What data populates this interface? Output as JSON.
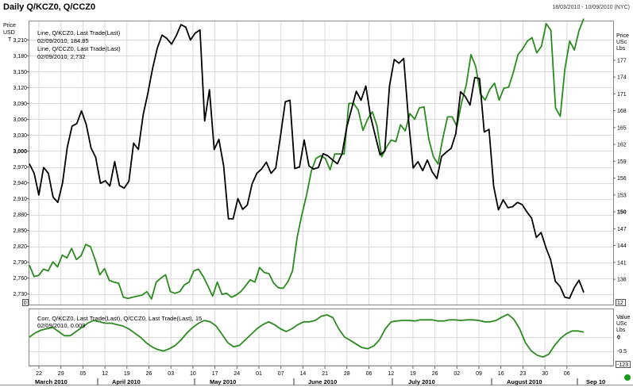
{
  "window": {
    "title": "Daily Q/KCZ0, Q/CCZ0",
    "date_range": "18/03/2010 - 10/09/2010 (NYC)"
  },
  "colors": {
    "kc": "#2a8a1e",
    "cc": "#000000",
    "grid": "#d8d8d8",
    "corr": "#2a8a1e",
    "status_dot": "#1a9a1a"
  },
  "chart_data": [
    {
      "type": "line",
      "title": "Daily Q/KCZ0, Q/CCZ0",
      "left_axis": {
        "label": [
          "Price",
          "USD",
          "T"
        ],
        "ylim": [
          2710,
          3245
        ],
        "ticks": [
          2730,
          2760,
          2790,
          2820,
          2850,
          2880,
          2910,
          2940,
          2970,
          3000,
          3030,
          3060,
          3090,
          3120,
          3150,
          3180,
          3210
        ],
        "tick_labels": [
          "2,730",
          "2,760",
          "2,790",
          "2,820",
          "2,850",
          "2,880",
          "2,910",
          "2,940",
          "2,970",
          "3,000",
          "3,030",
          "3,060",
          "3,090",
          "3,120",
          "3,150",
          "3,180",
          "3,210"
        ],
        "marker": "0"
      },
      "right_axis": {
        "label": [
          "Price",
          "USc",
          "Lbs"
        ],
        "ylim": [
          133.5,
          183.9
        ],
        "ticks": [
          138,
          141,
          144,
          147,
          150,
          153,
          156,
          159,
          162,
          165,
          168,
          171,
          174,
          177
        ],
        "tick_labels": [
          "138",
          "141",
          "144",
          "147",
          "150",
          "153",
          "156",
          "159",
          "162",
          "165",
          "168",
          "171",
          "174",
          "177"
        ],
        "marker": "12"
      },
      "legend": [
        {
          "text": "Line, Q/KCZ0, Last Trade(Last)",
          "value": "02/09/2010, 184.85",
          "color": "#2a8a1e"
        },
        {
          "text": "Line, Q/CCZ0, Last Trade(Last)",
          "value": "02/09/2010, 2,732",
          "color": "#000000"
        }
      ],
      "legend_position": "top-left",
      "grid": true,
      "x_tick_labels": [
        "22",
        "29",
        "05",
        "12",
        "19",
        "26",
        "03",
        "10",
        "17",
        "24",
        "01",
        "07",
        "14",
        "21",
        "28",
        "06",
        "12",
        "19",
        "26",
        "02",
        "09",
        "16",
        "23",
        "30",
        "06"
      ],
      "month_labels": [
        "March 2010",
        "April 2010",
        "May 2010",
        "June 2010",
        "July 2010",
        "August 2010",
        "Sep 10"
      ],
      "series": [
        {
          "name": "Q/KCZ0",
          "axis": "right",
          "values": [
            140.5,
            138.5,
            138.7,
            139.8,
            139.5,
            141.1,
            140.2,
            142.3,
            141.8,
            143.5,
            141.5,
            142.2,
            144.2,
            143.8,
            141.5,
            138.8,
            139.9,
            137.8,
            137.5,
            137.3,
            134.8,
            134.6,
            134.8,
            135.0,
            135.2,
            135.8,
            134.5,
            137.5,
            138.2,
            138.8,
            135.8,
            135.5,
            135.8,
            137.0,
            137.5,
            139.5,
            139.8,
            138.5,
            136.8,
            135.0,
            137.5,
            135.3,
            135.5,
            134.8,
            135.2,
            135.8,
            136.8,
            137.9,
            137.5,
            140.1,
            139.2,
            139.0,
            137.3,
            136.5,
            136.4,
            137.5,
            139.5,
            145.5,
            149.5,
            153.0,
            157.2,
            159.5,
            160.0,
            159.5,
            157.5,
            160.3,
            160.3,
            160.3,
            169.3,
            169.3,
            168.1,
            164.5,
            166.5,
            167.8,
            165.3,
            159.8,
            161.5,
            162.8,
            162.5,
            165.5,
            164.4,
            167.5,
            166.5,
            168.5,
            168.7,
            163.0,
            159.8,
            158.5,
            163.1,
            166.9,
            166.9,
            165.2,
            169.5,
            172.6,
            178.0,
            175.9,
            171.0,
            169.9,
            171.8,
            172.9,
            169.9,
            172.0,
            172.2,
            174.8,
            178.0,
            179.0,
            180.4,
            181.0,
            178.3,
            179.5,
            183.5,
            182.3,
            168.5,
            167.0,
            175.5,
            180.4,
            178.8,
            182.3,
            184.4
          ]
        },
        {
          "name": "Q/CCZ0",
          "axis": "left",
          "values": [
            2976,
            2958,
            2917,
            2969,
            2958,
            2913,
            2903,
            2940,
            3007,
            3047,
            3052,
            3076,
            3050,
            3006,
            2988,
            2939,
            2944,
            2934,
            2980,
            2935,
            2930,
            2943,
            3015,
            3003,
            3068,
            3109,
            3156,
            3195,
            3219,
            3213,
            3202,
            3218,
            3239,
            3234,
            3210,
            3223,
            3229,
            3057,
            3116,
            3003,
            3022,
            2972,
            2872,
            2872,
            2910,
            2890,
            2898,
            2938,
            2958,
            2966,
            2979,
            2958,
            2968,
            3029,
            3093,
            3096,
            2967,
            2970,
            3021,
            2972,
            2966,
            2969,
            2995,
            2991,
            2983,
            2976,
            2995,
            3046,
            3080,
            3113,
            3096,
            3123,
            3066,
            3029,
            2993,
            3000,
            3123,
            3173,
            3166,
            3175,
            3060,
            2968,
            2980,
            2963,
            2983,
            2961,
            2948,
            2990,
            2998,
            3005,
            3033,
            3112,
            3103,
            3087,
            3139,
            3137,
            3036,
            3041,
            2933,
            2889,
            2908,
            2893,
            2895,
            2903,
            2899,
            2885,
            2873,
            2837,
            2846,
            2818,
            2795,
            2754,
            2744,
            2724,
            2722,
            2742,
            2756,
            2733
          ]
        }
      ]
    },
    {
      "type": "line",
      "legend": [
        {
          "text": "Corr, Q/KCZ0, Last Trade(Last), Q/CCZ0, Last Trade(Last), 15",
          "value": "02/09/2010, 0.009",
          "color": "#2a8a1e"
        }
      ],
      "right_axis": {
        "label": [
          "Value",
          "USc",
          "Lbs"
        ],
        "ylim": [
          -1.0,
          1.0
        ],
        "ticks": [
          0,
          -0.5,
          -1
        ],
        "tick_labels": [
          "0",
          "-0.5",
          "-1"
        ],
        "marker": "-123"
      },
      "series": [
        {
          "name": "Corr",
          "values": [
            0.0,
            0.15,
            0.25,
            0.3,
            0.35,
            0.2,
            0.05,
            0.05,
            0.2,
            0.35,
            0.5,
            0.6,
            0.55,
            0.5,
            0.5,
            0.45,
            0.4,
            0.3,
            0.15,
            0.0,
            -0.2,
            -0.35,
            -0.45,
            -0.5,
            -0.42,
            -0.3,
            -0.1,
            0.15,
            0.35,
            0.5,
            0.6,
            0.55,
            0.4,
            0.1,
            -0.2,
            -0.35,
            -0.3,
            -0.1,
            0.1,
            0.3,
            0.45,
            0.55,
            0.45,
            0.3,
            0.2,
            0.3,
            0.45,
            0.55,
            0.55,
            0.6,
            0.75,
            0.8,
            0.7,
            0.3,
            0.0,
            -0.12,
            -0.25,
            -0.38,
            -0.42,
            -0.32,
            -0.1,
            0.3,
            0.55,
            0.58,
            0.6,
            0.6,
            0.58,
            0.62,
            0.62,
            0.62,
            0.58,
            0.58,
            0.62,
            0.62,
            0.6,
            0.62,
            0.62,
            0.6,
            0.55,
            0.55,
            0.6,
            0.72,
            0.82,
            0.65,
            0.3,
            -0.2,
            -0.5,
            -0.65,
            -0.72,
            -0.62,
            -0.3,
            -0.05,
            0.12,
            0.22,
            0.22,
            0.18
          ]
        }
      ]
    }
  ]
}
